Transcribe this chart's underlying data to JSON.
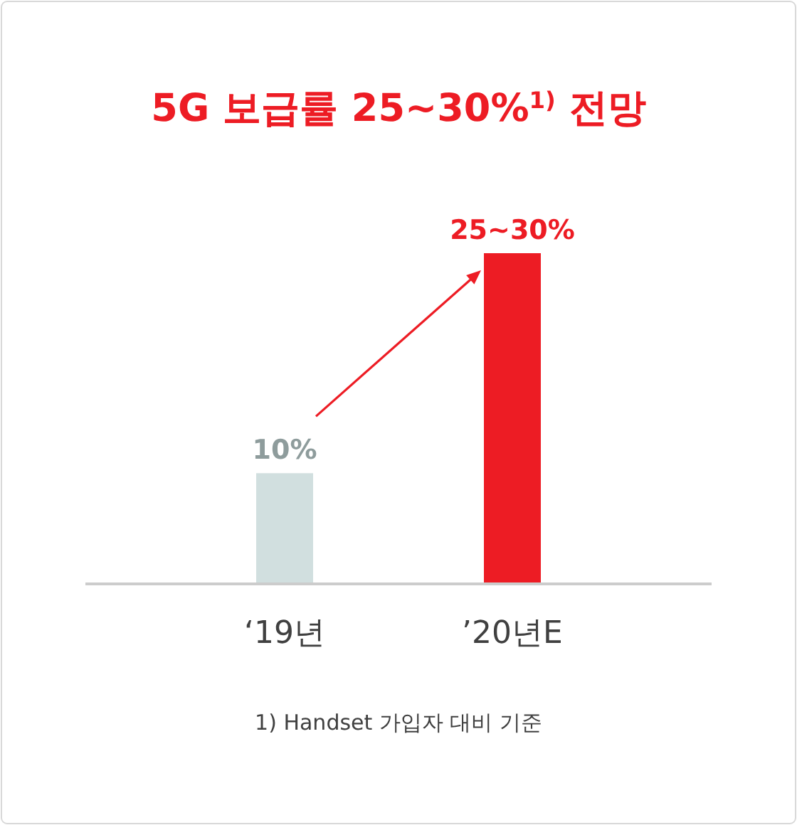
{
  "chart_data": {
    "type": "bar",
    "title": "5G 보급률 25~30%$^{1)}$ 전망",
    "categories": [
      "‘19년",
      "’20년E"
    ],
    "values": [
      10,
      30
    ],
    "colors": [
      "#d1dfdf",
      "#ed1c24"
    ],
    "value_labels": [
      "10%",
      "25~30%"
    ],
    "annotations": [
      "1) Handset 가입자 대비 기준"
    ]
  }
}
